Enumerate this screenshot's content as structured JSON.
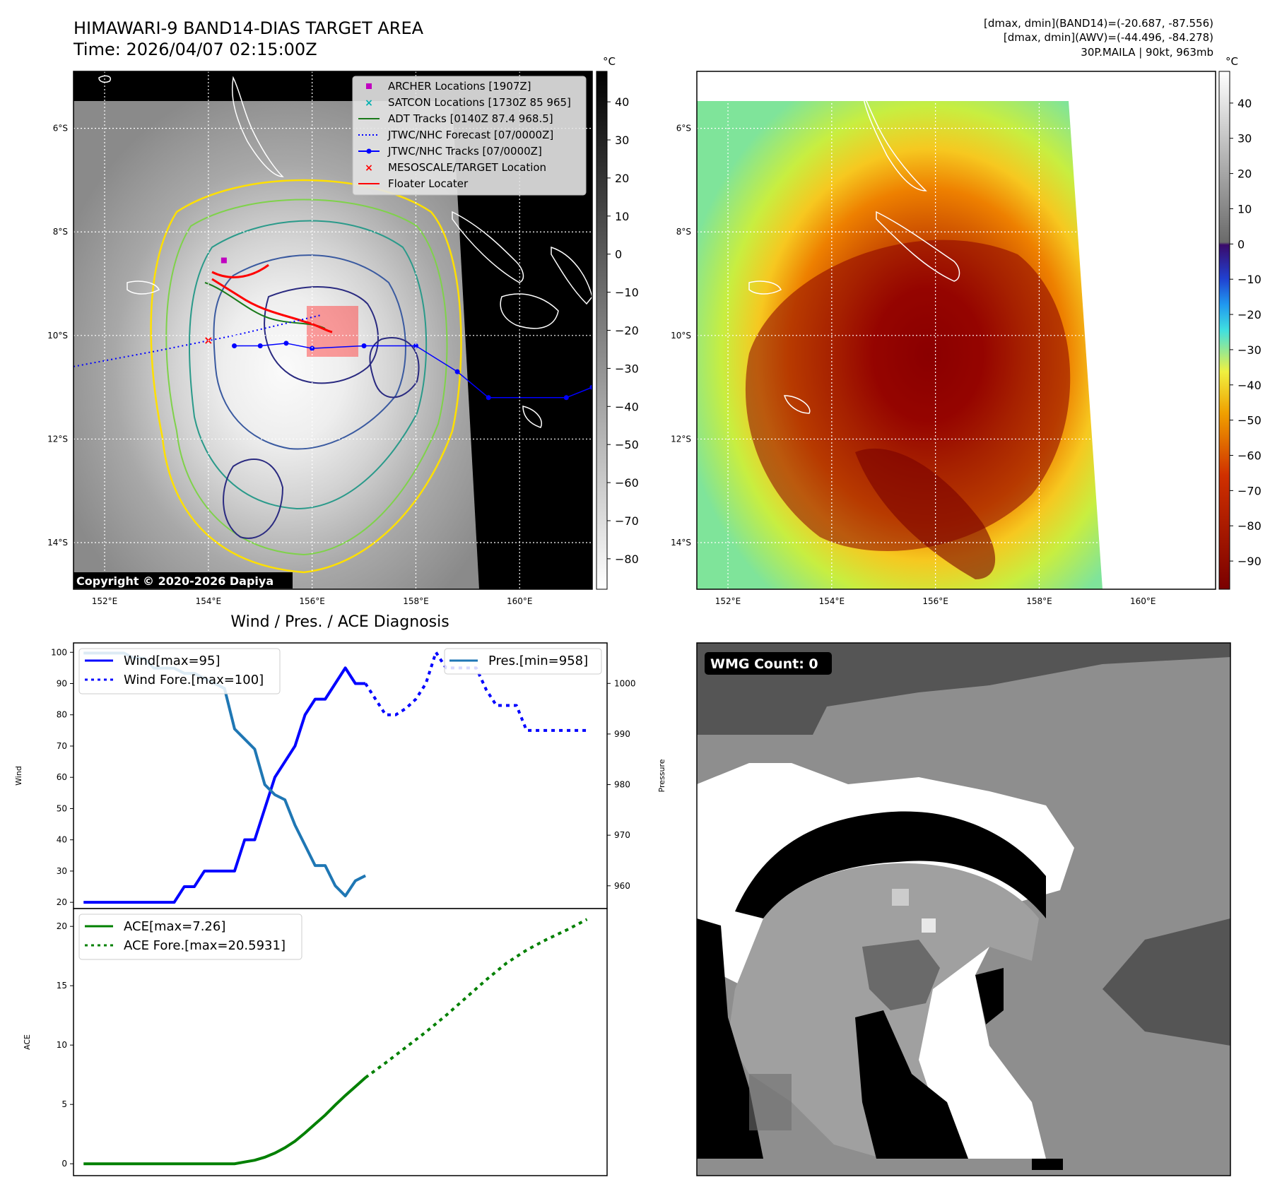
{
  "header": {
    "title": "HIMAWARI-9 BAND14-DIAS TARGET AREA",
    "time": "Time: 2026/04/07 02:15:00Z",
    "right_line1": "[dmax, dmin](BAND14)=(-20.687, -87.556)",
    "right_line2": "[dmax, dmin](AWV)=(-44.496, -84.278)",
    "right_line3": "30P.MAILA | 90kt, 963mb"
  },
  "map": {
    "lat_labels": [
      "6°S",
      "8°S",
      "10°S",
      "12°S",
      "14°S"
    ],
    "lat_values": [
      -6,
      -8,
      -10,
      -12,
      -14
    ],
    "lon_labels": [
      "152°E",
      "154°E",
      "156°E",
      "158°E",
      "160°E"
    ],
    "lon_values": [
      152,
      154,
      156,
      158,
      160
    ],
    "lon_range": [
      151.4,
      161.4
    ],
    "lat_range": [
      -14.9,
      -4.9
    ],
    "copyright": "Copyright © 2020-2026 Dapiya",
    "legend": [
      {
        "label": "ARCHER Locations [1907Z]",
        "marker": "square",
        "color": "#c000c0"
      },
      {
        "label": "SATCON Locations [1730Z 85 965]",
        "marker": "x",
        "color": "#00b0b0"
      },
      {
        "label": "ADT Tracks [0140Z 87.4 968.5]",
        "marker": "line",
        "color": "#1a7a1a"
      },
      {
        "label": "JTWC/NHC Forecast [07/0000Z]",
        "marker": "dotted",
        "color": "#0000ff"
      },
      {
        "label": "JTWC/NHC Tracks [07/0000Z]",
        "marker": "line-dot",
        "color": "#0000ff"
      },
      {
        "label": "MESOSCALE/TARGET Location",
        "marker": "x",
        "color": "#ff0000"
      },
      {
        "label": "Floater Locater",
        "marker": "line",
        "color": "#ff0000"
      }
    ],
    "jtwc_track": [
      [
        154.5,
        -10.2
      ],
      [
        155,
        -10.2
      ],
      [
        155.5,
        -10.15
      ],
      [
        156,
        -10.25
      ],
      [
        157,
        -10.2
      ],
      [
        158,
        -10.2
      ],
      [
        158.8,
        -10.7
      ],
      [
        159.4,
        -11.2
      ],
      [
        160.9,
        -11.2
      ],
      [
        161.4,
        -11.0
      ]
    ],
    "jtwc_forecast": [
      [
        151.4,
        -10.6
      ],
      [
        153,
        -10.3
      ],
      [
        154.5,
        -10.0
      ],
      [
        156.2,
        -9.6
      ]
    ],
    "archer": [
      154.3,
      -8.55
    ],
    "target": [
      154,
      -10.1
    ]
  },
  "colorbar1": {
    "unit": "°C",
    "ticks": [
      "40",
      "30",
      "20",
      "10",
      "0",
      "−10",
      "−20",
      "−30",
      "−40",
      "−50",
      "−60",
      "−70",
      "−80"
    ],
    "values": [
      40,
      30,
      20,
      10,
      0,
      -10,
      -20,
      -30,
      -40,
      -50,
      -60,
      -70,
      -80
    ],
    "range": [
      -88,
      48
    ]
  },
  "colorbar2": {
    "unit": "°C",
    "ticks": [
      "40",
      "30",
      "20",
      "10",
      "0",
      "−10",
      "−20",
      "−30",
      "−40",
      "−50",
      "−60",
      "−70",
      "−80",
      "−90"
    ],
    "values": [
      40,
      30,
      20,
      10,
      0,
      -10,
      -20,
      -30,
      -40,
      -50,
      -60,
      -70,
      -80,
      -90
    ],
    "range": [
      -98,
      49
    ]
  },
  "chart_data": [
    {
      "type": "line",
      "title": "Wind / Pres. / ACE Diagnosis",
      "ylabel": "Wind",
      "y2label": "Pressure",
      "ylim": [
        18,
        103
      ],
      "y2lim": [
        955.5,
        1008
      ],
      "yticks": [
        20,
        30,
        40,
        50,
        60,
        70,
        80,
        90,
        100
      ],
      "y2ticks": [
        960,
        970,
        980,
        990,
        1000
      ],
      "series": [
        {
          "name": "Wind[max=95]",
          "style": "solid",
          "color": "#0000ff",
          "axis": "left",
          "x": [
            0,
            1,
            2,
            3,
            4,
            5,
            6,
            7,
            8,
            9,
            10,
            11,
            12,
            13,
            14,
            15,
            16,
            17,
            18,
            19,
            20,
            21,
            22,
            23,
            24,
            25,
            26,
            27,
            28
          ],
          "values": [
            20,
            20,
            20,
            20,
            20,
            20,
            20,
            20,
            20,
            20,
            25,
            25,
            30,
            30,
            30,
            30,
            40,
            40,
            50,
            60,
            65,
            70,
            80,
            85,
            85,
            90,
            95,
            90,
            90
          ]
        },
        {
          "name": "Wind Fore.[max=100]",
          "style": "dotted",
          "color": "#0000ff",
          "axis": "left",
          "x": [
            28,
            29,
            30,
            31,
            32,
            33,
            34,
            35,
            36,
            37,
            38,
            39,
            40,
            41,
            42,
            43,
            44,
            45,
            46,
            47,
            48,
            49,
            50
          ],
          "values": [
            90,
            85,
            80,
            80,
            82,
            85,
            90,
            100,
            95,
            95,
            95,
            95,
            88,
            83,
            83,
            83,
            75,
            75,
            75,
            75,
            75,
            75,
            75
          ]
        },
        {
          "name": "Pres.[min=958]",
          "style": "solid",
          "color": "#1f77b4",
          "axis": "right",
          "x": [
            0,
            1,
            2,
            3,
            4,
            5,
            6,
            7,
            8,
            9,
            10,
            11,
            12,
            13,
            14,
            15,
            16,
            17,
            18,
            19,
            20,
            21,
            22,
            23,
            24,
            25,
            26,
            27,
            28
          ],
          "values": [
            1006,
            1006,
            1006,
            1006,
            1006,
            1005,
            1005,
            1003,
            1003,
            1003,
            1002,
            1002,
            1001,
            1000,
            999,
            991,
            989,
            987,
            980,
            978,
            977,
            972,
            968,
            964,
            964,
            960,
            958,
            961,
            962
          ]
        }
      ],
      "legend_left": [
        "Wind[max=95]",
        "Wind Fore.[max=100]"
      ],
      "legend_right": [
        "Pres.[min=958]"
      ]
    },
    {
      "type": "line",
      "ylabel": "ACE",
      "ylim": [
        -1,
        21.5
      ],
      "yticks": [
        0,
        5,
        10,
        15,
        20
      ],
      "series": [
        {
          "name": "ACE[max=7.26]",
          "style": "solid",
          "color": "#008000",
          "x": [
            0,
            5,
            10,
            15,
            16,
            17,
            18,
            19,
            20,
            21,
            22,
            23,
            24,
            25,
            26,
            27,
            28
          ],
          "values": [
            0,
            0,
            0,
            0,
            0.15,
            0.3,
            0.55,
            0.9,
            1.35,
            1.9,
            2.6,
            3.35,
            4.1,
            4.95,
            5.75,
            6.5,
            7.26
          ]
        },
        {
          "name": "ACE Fore.[max=20.5931]",
          "style": "dotted",
          "color": "#008000",
          "x": [
            28,
            30,
            32,
            34,
            36,
            38,
            40,
            42,
            44,
            46,
            48,
            50
          ],
          "values": [
            7.26,
            8.5,
            9.8,
            11.1,
            12.5,
            14.0,
            15.5,
            16.9,
            18.0,
            18.9,
            19.7,
            20.59
          ]
        }
      ],
      "legend": [
        "ACE[max=7.26]",
        "ACE Fore.[max=20.5931]"
      ]
    }
  ],
  "wmg": {
    "label": "WMG Count: 0"
  }
}
